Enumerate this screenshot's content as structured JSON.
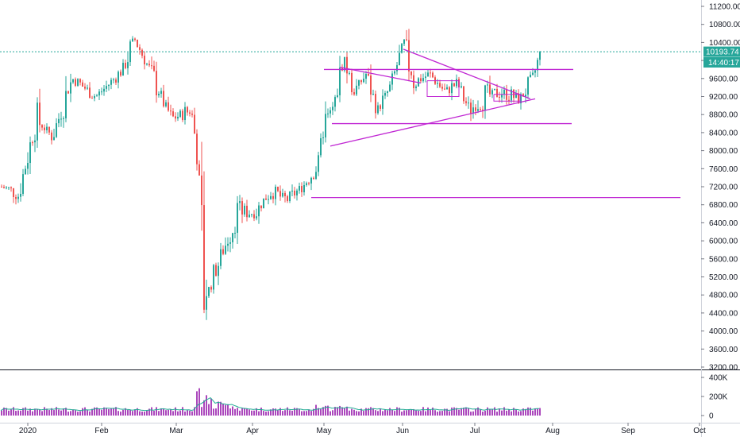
{
  "chart_data": {
    "type": "candlestick",
    "price_axis": {
      "ticks": [
        "11200.00",
        "10800.00",
        "10400.00",
        "10000.00",
        "9600.00",
        "9200.00",
        "8800.00",
        "8400.00",
        "8000.00",
        "7600.00",
        "7200.00",
        "6800.00",
        "6400.00",
        "6000.00",
        "5600.00",
        "5200.00",
        "4800.00",
        "4400.00",
        "4000.00",
        "3600.00",
        "3200.00"
      ],
      "range": [
        3200,
        11200
      ]
    },
    "volume_axis": {
      "ticks": [
        "400K",
        "200K",
        "0"
      ],
      "range": [
        0,
        400000
      ]
    },
    "time_axis": {
      "labels": [
        "2020",
        "Feb",
        "Mar",
        "Apr",
        "May",
        "Jun",
        "Jul",
        "Aug",
        "Sep",
        "Oct"
      ]
    },
    "last_price": "10193.74",
    "countdown": "14:40:17",
    "drawn_levels": [
      9800,
      8600,
      6960
    ],
    "colors": {
      "up": "#26a69a",
      "down": "#ef5350",
      "volume": "#9c27b0",
      "drawing": "#c026d3",
      "volume_ma": "#22ab94"
    },
    "key_points": {
      "start_close": 7200,
      "feb_high": 10500,
      "mar_low": 3800,
      "apr_end": 8600,
      "may_high": 10050,
      "jun_high": 10400,
      "jul_low": 8900,
      "last_high": 10390,
      "last_close": 10193.74
    },
    "grid": false
  }
}
